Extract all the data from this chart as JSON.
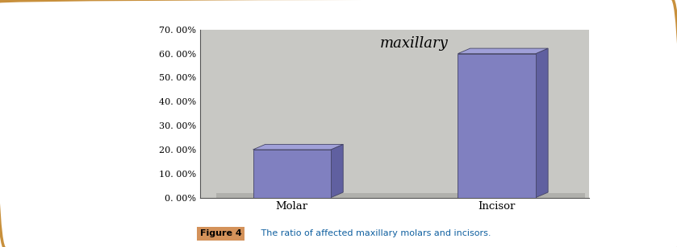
{
  "categories": [
    "Molar",
    "Incisor"
  ],
  "values": [
    0.2,
    0.6
  ],
  "bar_color_front": "#8080C0",
  "bar_color_top": "#A0A0D8",
  "bar_color_side": "#6060A0",
  "plot_bg_color": "#C8C8C4",
  "floor_color": "#B0B0AC",
  "title_inside": "maxillary",
  "ylim": [
    0,
    0.7
  ],
  "yticks": [
    0.0,
    0.1,
    0.2,
    0.3,
    0.4,
    0.5,
    0.6,
    0.7
  ],
  "ytick_labels": [
    "0. 00%",
    "10. 00%",
    "20. 00%",
    "30. 00%",
    "40. 00%",
    "50. 00%",
    "60. 00%",
    "70. 00%"
  ],
  "caption_bold": "Figure 4",
  "caption_text": "   The ratio of affected maxillary molars and incisors.",
  "caption_bg": "#D4925A",
  "fig_bg": "#FFFFFF",
  "border_color": "#C8903C"
}
